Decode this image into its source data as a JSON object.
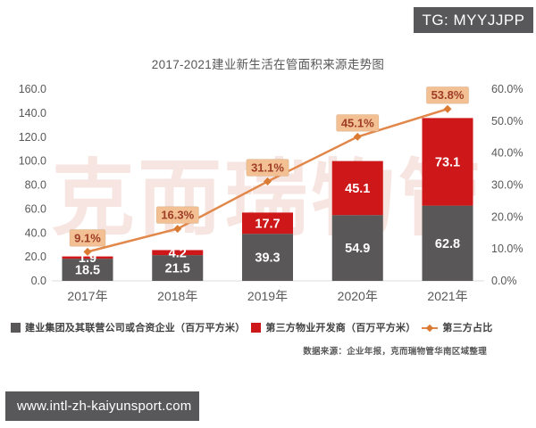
{
  "badge": {
    "text": "TG: MYYJJPP"
  },
  "watermark": "克而瑞物管",
  "url_box": {
    "text": "www.intl-zh-kaiyunsport.com"
  },
  "chart_data": {
    "type": "bar",
    "variant": "stacked-column-with-line",
    "title": "2017-2021建业新生活在管面积来源走势图",
    "categories": [
      "2017年",
      "2018年",
      "2019年",
      "2020年",
      "2021年"
    ],
    "series": [
      {
        "name": "建业集团及其联营公司或合资企业（百万平方米）",
        "kind": "bar",
        "color": "#595757",
        "values": [
          18.5,
          21.5,
          39.3,
          54.9,
          62.8
        ]
      },
      {
        "name": "第三方物业开发商（百万平方米）",
        "kind": "bar",
        "color": "#cd1719",
        "values": [
          1.9,
          4.2,
          17.7,
          45.1,
          73.1
        ]
      },
      {
        "name": "第三方占比",
        "kind": "line",
        "axis": "right",
        "color": "#e2874a",
        "marker_color": "#db7a33",
        "label_bg": "#f2c093",
        "label_color": "#9e3c25",
        "values": [
          9.1,
          16.3,
          31.1,
          45.1,
          53.8
        ],
        "labels": [
          "9.1%",
          "16.3%",
          "31.1%",
          "45.1%",
          "53.8%"
        ]
      }
    ],
    "left_axis": {
      "min": 0,
      "max": 160,
      "ticks": [
        "0.0",
        "20.0",
        "40.0",
        "60.0",
        "80.0",
        "100.0",
        "120.0",
        "140.0",
        "160.0"
      ]
    },
    "right_axis": {
      "min": 0,
      "max": 60,
      "ticks": [
        "0.0%",
        "10.0%",
        "20.0%",
        "30.0%",
        "40.0%",
        "50.0%",
        "60.0%"
      ]
    },
    "grid": false,
    "legend_position": "bottom",
    "value_label_color": "#ffffff",
    "axis_text_color": "#595757",
    "baseline_color": "#dcdcdc",
    "watermark_color": "#f6e5e1",
    "source_note": "数据来源：企业年报，克而瑞物管华南区域整理"
  }
}
